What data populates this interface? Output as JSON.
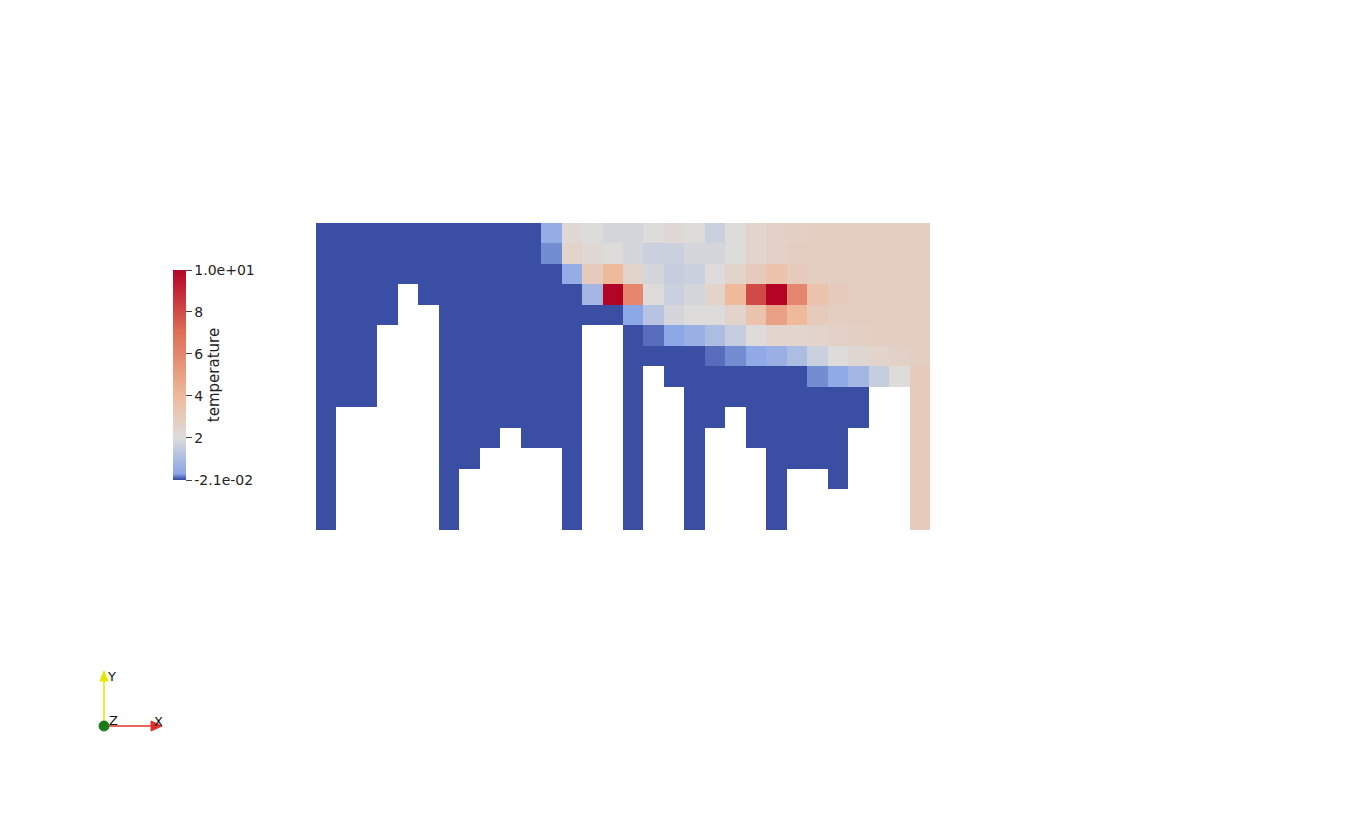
{
  "chart_data": {
    "type": "heatmap",
    "tick_labels": false,
    "z": [
      [
        0,
        0,
        0,
        0,
        0,
        0,
        0,
        0,
        0,
        0,
        0,
        0.5,
        2.2,
        2.0,
        1.8,
        1.8,
        2.0,
        2.2,
        2.0,
        1.6,
        2.0,
        2.4,
        2.6,
        2.7,
        2.8,
        2.8,
        2.8,
        2.8,
        2.8,
        2.8
      ],
      [
        0,
        0,
        0,
        0,
        0,
        0,
        0,
        0,
        0,
        0,
        0,
        0.2,
        2.5,
        2.2,
        2.0,
        1.8,
        1.6,
        1.6,
        1.8,
        1.8,
        2.0,
        2.4,
        2.6,
        2.8,
        2.8,
        2.8,
        2.8,
        2.8,
        2.8,
        2.8
      ],
      [
        0,
        0,
        0,
        0,
        0,
        0,
        0,
        0,
        0,
        0,
        0,
        0,
        0.5,
        3.0,
        4.0,
        2.5,
        1.8,
        1.5,
        1.6,
        2.0,
        2.5,
        3.0,
        3.5,
        3.0,
        2.8,
        2.8,
        2.8,
        2.8,
        2.8,
        2.8
      ],
      [
        0,
        0,
        0,
        0,
        null,
        0,
        0,
        0,
        0,
        0,
        0,
        0,
        0,
        0.8,
        10,
        6,
        2.0,
        1.6,
        1.8,
        2.5,
        4,
        8,
        10,
        6,
        3.5,
        3,
        2.8,
        2.8,
        2.8,
        2.8
      ],
      [
        0,
        0,
        0,
        0,
        null,
        null,
        0,
        0,
        0,
        0,
        0,
        0,
        0,
        0,
        0,
        0.3,
        1.2,
        1.8,
        2.0,
        2.0,
        2.5,
        3.5,
        5,
        4,
        3,
        2.8,
        2.8,
        2.8,
        2.8,
        2.8
      ],
      [
        0,
        0,
        0,
        null,
        null,
        null,
        0,
        0,
        0,
        0,
        0,
        0,
        0,
        null,
        null,
        0,
        0.1,
        0.3,
        0.6,
        1.0,
        1.5,
        2.0,
        2.4,
        2.4,
        2.5,
        2.6,
        2.7,
        2.8,
        2.8,
        2.8
      ],
      [
        0,
        0,
        0,
        null,
        null,
        null,
        0,
        0,
        0,
        0,
        0,
        0,
        0,
        null,
        null,
        0,
        0,
        0,
        0,
        0.1,
        0.2,
        0.4,
        0.6,
        1.0,
        1.6,
        2.0,
        2.3,
        2.5,
        2.6,
        2.8
      ],
      [
        0,
        0,
        0,
        null,
        null,
        null,
        0,
        0,
        0,
        0,
        0,
        0,
        0,
        null,
        null,
        0,
        null,
        0,
        0,
        0,
        0,
        0,
        0,
        0,
        0.2,
        0.4,
        0.8,
        1.5,
        2.0,
        3.0
      ],
      [
        0,
        0,
        0,
        null,
        null,
        null,
        0,
        0,
        0,
        0,
        0,
        0,
        0,
        null,
        null,
        0,
        null,
        null,
        0,
        0,
        0,
        0,
        0,
        0,
        0,
        0,
        0,
        null,
        null,
        3.0
      ],
      [
        0,
        null,
        null,
        null,
        null,
        null,
        0,
        0,
        0,
        0,
        0,
        0,
        0,
        null,
        null,
        0,
        null,
        null,
        0,
        0,
        null,
        0,
        0,
        0,
        0,
        0,
        0,
        null,
        null,
        3.0
      ],
      [
        0,
        null,
        null,
        null,
        null,
        null,
        0,
        0,
        0,
        null,
        0,
        0,
        0,
        null,
        null,
        0,
        null,
        null,
        0,
        null,
        null,
        0,
        0,
        0,
        0,
        0,
        null,
        null,
        null,
        3.0
      ],
      [
        0,
        null,
        null,
        null,
        null,
        null,
        0,
        0,
        null,
        null,
        null,
        null,
        0,
        null,
        null,
        0,
        null,
        null,
        0,
        null,
        null,
        null,
        0,
        0,
        0,
        0,
        null,
        null,
        null,
        3.0
      ],
      [
        0,
        null,
        null,
        null,
        null,
        null,
        0,
        null,
        null,
        null,
        null,
        null,
        0,
        null,
        null,
        0,
        null,
        null,
        0,
        null,
        null,
        null,
        0,
        null,
        null,
        0,
        null,
        null,
        null,
        3.0
      ],
      [
        0,
        null,
        null,
        null,
        null,
        null,
        0,
        null,
        null,
        null,
        null,
        null,
        0,
        null,
        null,
        0,
        null,
        null,
        0,
        null,
        null,
        null,
        0,
        null,
        null,
        null,
        null,
        null,
        null,
        3.0
      ],
      [
        0,
        null,
        null,
        null,
        null,
        null,
        0,
        null,
        null,
        null,
        null,
        null,
        0,
        null,
        null,
        0,
        null,
        null,
        0,
        null,
        null,
        null,
        0,
        null,
        null,
        null,
        null,
        null,
        null,
        3.0
      ]
    ],
    "colorbar": {
      "title": "temperature",
      "zlim": [
        -0.021,
        10
      ],
      "ticks": [
        {
          "value": -0.021,
          "label": "-2.1e-02"
        },
        2,
        4,
        6,
        8,
        {
          "value": 10,
          "label": "1.0e+01"
        }
      ]
    },
    "annotations": [
      "Y",
      "Z",
      "X"
    ]
  }
}
